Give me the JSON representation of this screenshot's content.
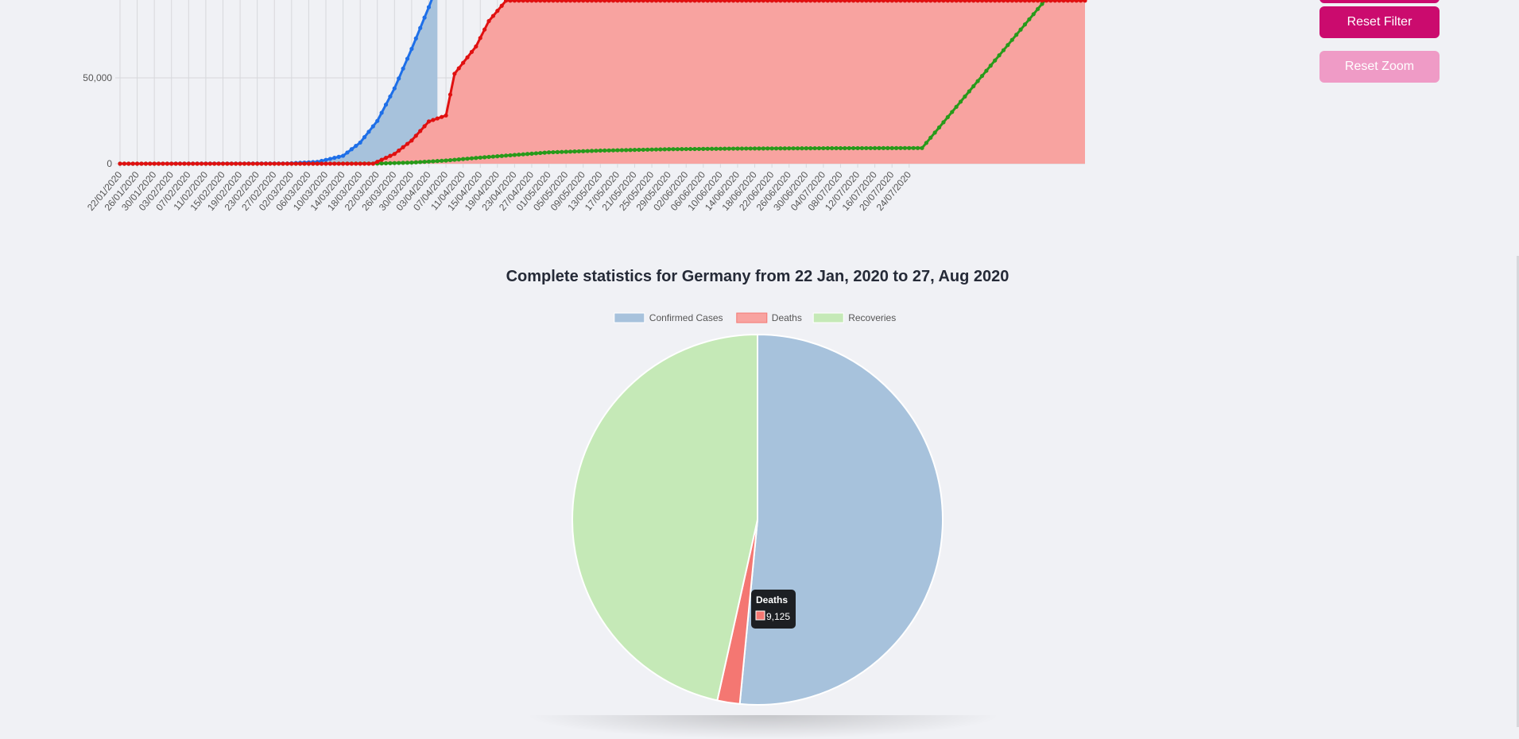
{
  "colors": {
    "confirmed_fill": "#a7c2dc",
    "confirmed_line": "#1e6fe8",
    "deaths_fill": "#f8a3a0",
    "deaths_line": "#e01010",
    "recoveries_fill": "#c5e9b7",
    "recoveries_line": "#279a1a",
    "pie_deaths": "#f47772",
    "button_primary": "#cb0b6e",
    "button_disabled": "#ef9bc6",
    "grid": "#d7d8dc",
    "tooltip_bg": "#1d1f23"
  },
  "buttons": {
    "reset_filter": "Reset Filter",
    "reset_zoom": "Reset Zoom"
  },
  "chart_data": [
    {
      "type": "area",
      "title": "",
      "xlabel": "",
      "ylabel": "",
      "y_tick_labels": [
        "0",
        "50,000"
      ],
      "ylim": [
        0,
        95000
      ],
      "x_tick_labels": [
        "22/01/2020",
        "26/01/2020",
        "30/01/2020",
        "03/02/2020",
        "07/02/2020",
        "11/02/2020",
        "15/02/2020",
        "19/02/2020",
        "23/02/2020",
        "27/02/2020",
        "02/03/2020",
        "06/03/2020",
        "10/03/2020",
        "14/03/2020",
        "18/03/2020",
        "22/03/2020",
        "26/03/2020",
        "30/03/2020",
        "03/04/2020",
        "07/04/2020",
        "11/04/2020",
        "15/04/2020",
        "19/04/2020",
        "23/04/2020",
        "27/04/2020",
        "01/05/2020",
        "05/05/2020",
        "09/05/2020",
        "13/05/2020",
        "17/05/2020",
        "21/05/2020",
        "25/05/2020",
        "29/05/2020",
        "02/06/2020",
        "06/06/2020",
        "10/06/2020",
        "14/06/2020",
        "18/06/2020",
        "22/06/2020",
        "26/06/2020",
        "30/06/2020",
        "04/07/2020",
        "08/07/2020",
        "12/07/2020",
        "16/07/2020",
        "20/07/2020",
        "24/07/2020"
      ],
      "grid": true,
      "series": [
        {
          "name": "Confirmed Cases",
          "x": [
            "22/01/2020",
            "01/03/2020",
            "08/03/2020",
            "14/03/2020",
            "18/03/2020",
            "22/03/2020",
            "26/03/2020",
            "30/03/2020",
            "03/04/2020"
          ],
          "values": [
            0,
            130,
            1040,
            4590,
            12300,
            24900,
            43900,
            66900,
            91200
          ]
        },
        {
          "name": "Recoveries",
          "x": [
            "22/01/2020",
            "21/03/2020",
            "26/03/2020",
            "30/03/2020",
            "03/04/2020",
            "07/04/2020",
            "09/04/2020",
            "14/04/2020",
            "17/04/2020",
            "21/04/2020"
          ],
          "values": [
            0,
            0,
            5700,
            13500,
            24600,
            28100,
            52400,
            68300,
            83100,
            95000
          ]
        },
        {
          "name": "Deaths",
          "x": [
            "22/01/2020",
            "08/03/2020",
            "22/03/2020",
            "30/03/2020",
            "07/04/2020",
            "15/04/2020",
            "23/04/2020",
            "01/05/2020",
            "13/05/2020",
            "29/05/2020",
            "14/06/2020",
            "04/07/2020",
            "27/07/2020"
          ],
          "values": [
            0,
            0,
            100,
            650,
            1850,
            3570,
            5090,
            6610,
            7630,
            8440,
            8800,
            9010,
            9125
          ]
        }
      ]
    },
    {
      "type": "pie",
      "title": "Complete statistics for Germany from 22 Jan, 2020 to 27, Aug 2020",
      "legend_position": "top",
      "categories": [
        "Confirmed Cases",
        "Deaths",
        "Recoveries"
      ],
      "values": [
        240400,
        9125,
        217000
      ],
      "tooltip": {
        "label": "Deaths",
        "value": "9,125"
      }
    }
  ]
}
